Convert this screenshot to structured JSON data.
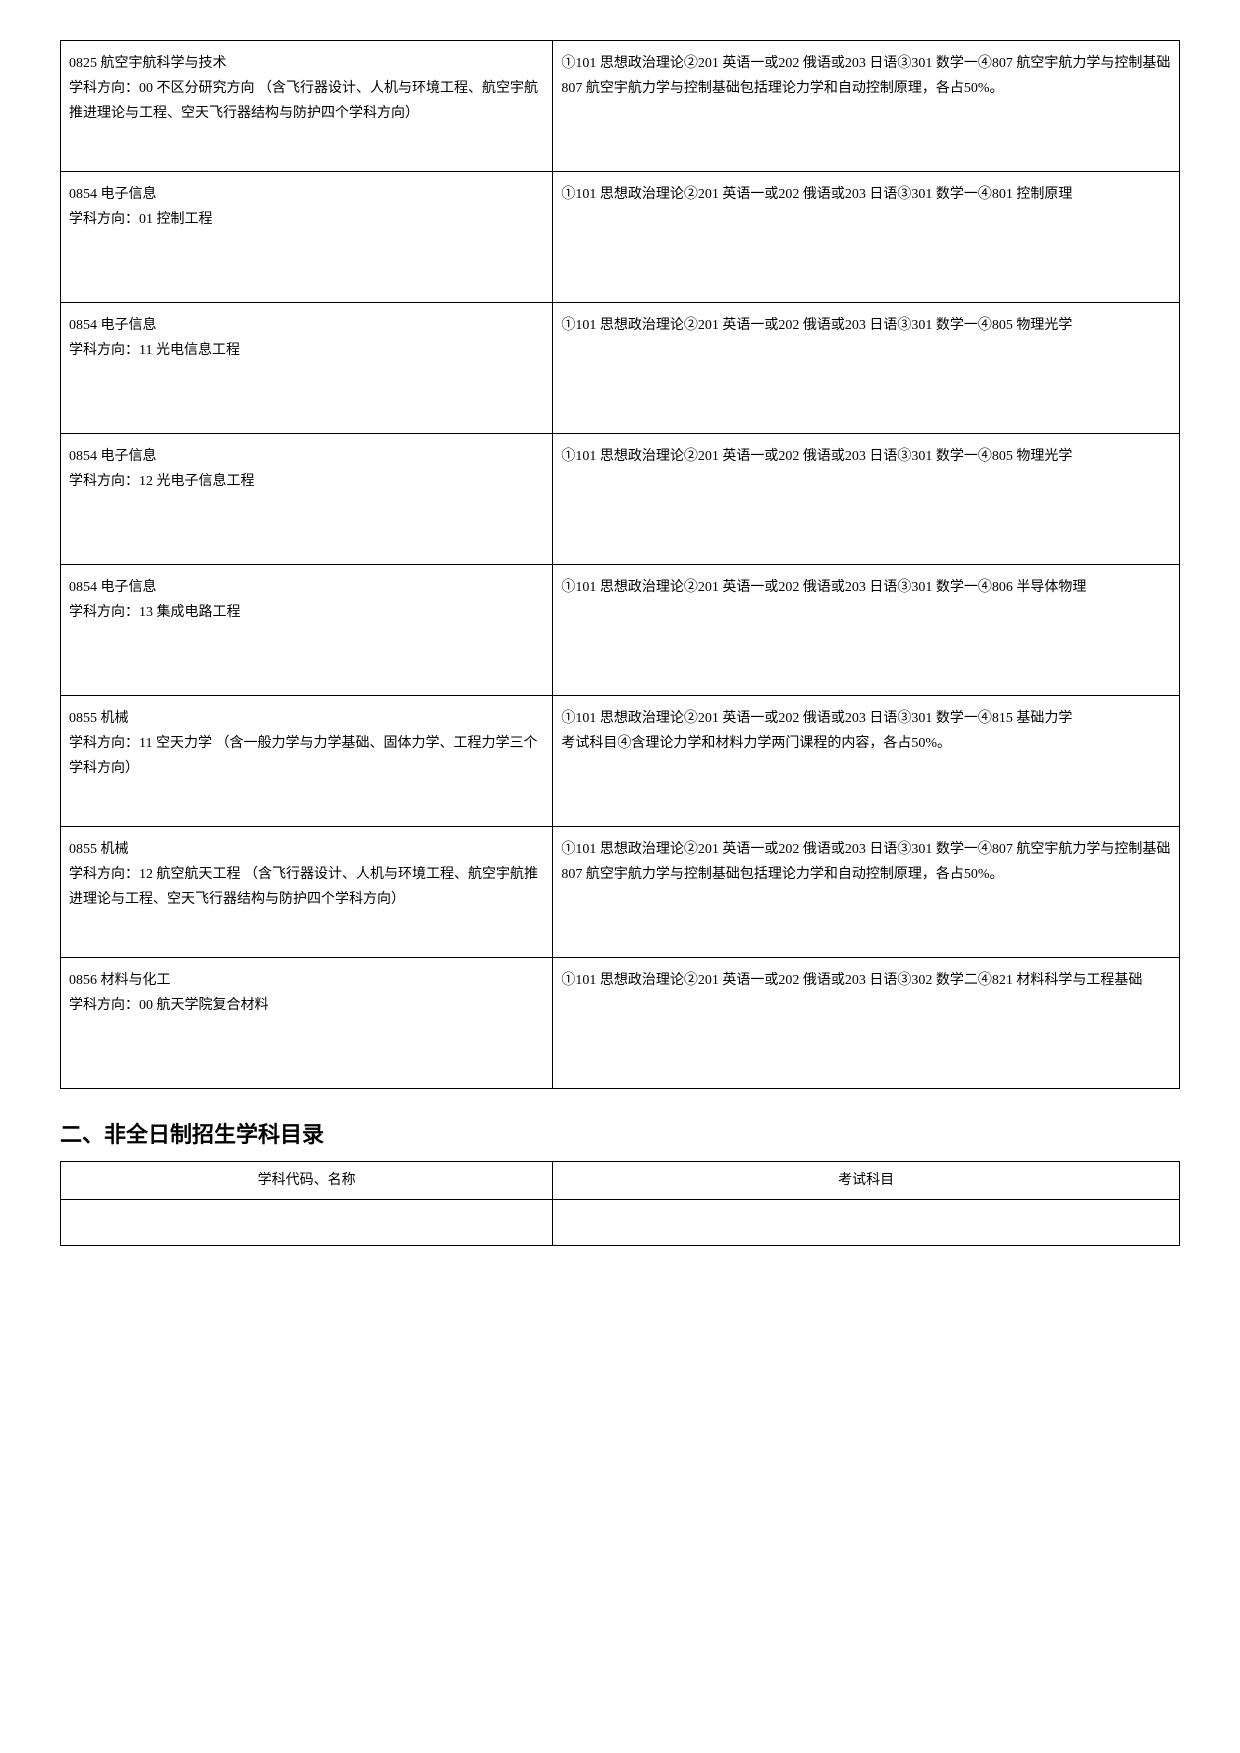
{
  "table1": {
    "rows": [
      {
        "left": "0825 航空宇航科学与技术\n学科方向：00 不区分研究方向 （含飞行器设计、人机与环境工程、航空宇航推进理论与工程、空天飞行器结构与防护四个学科方向）",
        "right": "①101 思想政治理论②201 英语一或202 俄语或203 日语③301 数学一④807 航空宇航力学与控制基础\n807 航空宇航力学与控制基础包括理论力学和自动控制原理，各占50%。"
      },
      {
        "left": "0854 电子信息\n学科方向：01 控制工程",
        "right": "①101 思想政治理论②201 英语一或202 俄语或203 日语③301 数学一④801 控制原理"
      },
      {
        "left": "0854 电子信息\n学科方向：11 光电信息工程",
        "right": "①101 思想政治理论②201 英语一或202 俄语或203 日语③301 数学一④805 物理光学"
      },
      {
        "left": "0854 电子信息\n学科方向：12 光电子信息工程",
        "right": "①101 思想政治理论②201 英语一或202 俄语或203 日语③301 数学一④805 物理光学"
      },
      {
        "left": "0854 电子信息\n学科方向：13 集成电路工程",
        "right": "①101 思想政治理论②201 英语一或202 俄语或203 日语③301 数学一④806 半导体物理"
      },
      {
        "left": "0855 机械\n学科方向：11 空天力学 （含一般力学与力学基础、固体力学、工程力学三个学科方向）",
        "right": "①101 思想政治理论②201 英语一或202 俄语或203 日语③301 数学一④815 基础力学\n考试科目④含理论力学和材料力学两门课程的内容，各占50%。"
      },
      {
        "left": "0855 机械\n学科方向：12 航空航天工程 （含飞行器设计、人机与环境工程、航空宇航推进理论与工程、空天飞行器结构与防护四个学科方向）",
        "right": "①101 思想政治理论②201 英语一或202 俄语或203 日语③301 数学一④807 航空宇航力学与控制基础\n807 航空宇航力学与控制基础包括理论力学和自动控制原理，各占50%。"
      },
      {
        "left": "0856 材料与化工\n学科方向：00 航天学院复合材料",
        "right": "①101 思想政治理论②201 英语一或202 俄语或203 日语③302 数学二④821 材料科学与工程基础"
      }
    ]
  },
  "section2_title": "二、非全日制招生学科目录",
  "table2": {
    "header_left": "学科代码、名称",
    "header_right": "考试科目"
  }
}
